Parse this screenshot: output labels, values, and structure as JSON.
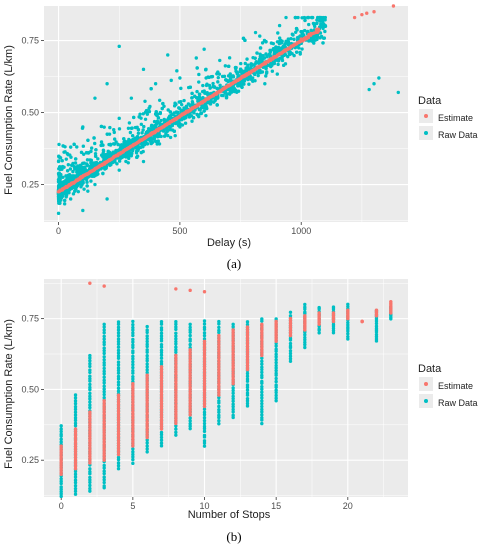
{
  "colors": {
    "estimate": "#F8766D",
    "raw": "#00BFC4",
    "panel": "#EBEBEB",
    "grid": "#FFFFFF"
  },
  "chart_data": [
    {
      "type": "scatter",
      "panel": "a",
      "caption": "(a)",
      "xlabel": "Delay (s)",
      "ylabel": "Fuel Consumption Rate (L/km)",
      "xlim": [
        -60,
        1440
      ],
      "ylim": [
        0.12,
        0.87
      ],
      "xticks": [
        0,
        500,
        1000
      ],
      "xtick_labels": [
        "0",
        "500",
        "1000"
      ],
      "yticks": [
        0.25,
        0.5,
        0.75
      ],
      "ytick_labels": [
        "0.25",
        "0.50",
        "0.75"
      ],
      "grid": true,
      "legend": {
        "title": "Data",
        "position": "right",
        "entries": [
          "Estimate",
          "Raw Data"
        ]
      },
      "series": [
        {
          "name": "Raw Data",
          "description_points": [
            [
              0,
              0.15
            ],
            [
              0,
              0.2
            ],
            [
              0,
              0.33
            ],
            [
              50,
              0.2
            ],
            [
              50,
              0.38
            ],
            [
              100,
              0.16
            ],
            [
              100,
              0.3
            ],
            [
              100,
              0.45
            ],
            [
              150,
              0.25
            ],
            [
              150,
              0.55
            ],
            [
              200,
              0.2
            ],
            [
              200,
              0.35
            ],
            [
              200,
              0.6
            ],
            [
              250,
              0.3
            ],
            [
              250,
              0.48
            ],
            [
              250,
              0.73
            ],
            [
              300,
              0.35
            ],
            [
              300,
              0.55
            ],
            [
              350,
              0.33
            ],
            [
              350,
              0.65
            ],
            [
              400,
              0.4
            ],
            [
              400,
              0.6
            ],
            [
              450,
              0.42
            ],
            [
              450,
              0.7
            ],
            [
              500,
              0.45
            ],
            [
              500,
              0.62
            ],
            [
              550,
              0.47
            ],
            [
              600,
              0.52
            ],
            [
              600,
              0.72
            ],
            [
              650,
              0.55
            ],
            [
              700,
              0.58
            ],
            [
              750,
              0.6
            ],
            [
              800,
              0.62
            ],
            [
              850,
              0.6
            ],
            [
              900,
              0.7
            ],
            [
              950,
              0.72
            ],
            [
              1000,
              0.75
            ],
            [
              1050,
              0.78
            ],
            [
              1100,
              0.8
            ],
            [
              1300,
              0.6
            ],
            [
              1320,
              0.62
            ],
            [
              1400,
              0.57
            ],
            [
              1280,
              0.58
            ]
          ]
        },
        {
          "name": "Estimate",
          "line": [
            [
              0,
              0.225
            ],
            [
              1000,
              0.75
            ]
          ],
          "extra_points": [
            [
              1220,
              0.83
            ],
            [
              1250,
              0.84
            ],
            [
              1270,
              0.845
            ],
            [
              1300,
              0.85
            ],
            [
              1380,
              0.87
            ]
          ]
        }
      ]
    },
    {
      "type": "scatter",
      "panel": "b",
      "caption": "(b)",
      "xlabel": "Number of Stops",
      "ylabel": "Fuel Consumption Rate (L/km)",
      "xlim": [
        -1.2,
        24.2
      ],
      "ylim": [
        0.12,
        0.89
      ],
      "xticks": [
        0,
        5,
        10,
        15,
        20
      ],
      "xtick_labels": [
        "0",
        "5",
        "10",
        "15",
        "20"
      ],
      "yticks": [
        0.25,
        0.5,
        0.75
      ],
      "ytick_labels": [
        "0.25",
        "0.50",
        "0.75"
      ],
      "grid": true,
      "legend": {
        "title": "Data",
        "position": "right",
        "entries": [
          "Estimate",
          "Raw Data"
        ]
      },
      "series": [
        {
          "name": "Raw Data",
          "columns": [
            [
              0,
              0.12,
              0.37
            ],
            [
              1,
              0.13,
              0.48
            ],
            [
              2,
              0.14,
              0.62
            ],
            [
              3,
              0.15,
              0.73
            ],
            [
              4,
              0.22,
              0.74
            ],
            [
              5,
              0.24,
              0.74
            ],
            [
              6,
              0.28,
              0.72
            ],
            [
              7,
              0.3,
              0.74
            ],
            [
              8,
              0.34,
              0.74
            ],
            [
              9,
              0.36,
              0.73
            ],
            [
              10,
              0.3,
              0.74
            ],
            [
              11,
              0.38,
              0.74
            ],
            [
              12,
              0.4,
              0.73
            ],
            [
              13,
              0.44,
              0.74
            ],
            [
              14,
              0.38,
              0.75
            ],
            [
              15,
              0.46,
              0.75
            ],
            [
              16,
              0.6,
              0.77
            ],
            [
              17,
              0.65,
              0.8
            ],
            [
              18,
              0.7,
              0.79
            ],
            [
              19,
              0.7,
              0.79
            ],
            [
              20,
              0.68,
              0.8
            ],
            [
              22,
              0.67,
              0.78
            ],
            [
              23,
              0.75,
              0.79
            ]
          ]
        },
        {
          "name": "Estimate",
          "columns": [
            [
              0,
              0.2,
              0.3
            ],
            [
              1,
              0.22,
              0.36
            ],
            [
              2,
              0.24,
              0.42
            ],
            [
              3,
              0.25,
              0.46
            ],
            [
              4,
              0.27,
              0.48
            ],
            [
              5,
              0.3,
              0.52
            ],
            [
              6,
              0.33,
              0.55
            ],
            [
              7,
              0.36,
              0.58
            ],
            [
              8,
              0.38,
              0.62
            ],
            [
              9,
              0.41,
              0.64
            ],
            [
              10,
              0.44,
              0.67
            ],
            [
              11,
              0.48,
              0.69
            ],
            [
              12,
              0.52,
              0.71
            ],
            [
              13,
              0.57,
              0.72
            ],
            [
              14,
              0.62,
              0.73
            ],
            [
              15,
              0.67,
              0.74
            ],
            [
              16,
              0.69,
              0.75
            ],
            [
              17,
              0.71,
              0.76
            ],
            [
              18,
              0.73,
              0.77
            ],
            [
              19,
              0.74,
              0.77
            ],
            [
              20,
              0.75,
              0.78
            ],
            [
              21,
              0.74,
              0.74
            ],
            [
              22,
              0.76,
              0.78
            ],
            [
              23,
              0.77,
              0.81
            ]
          ],
          "outliers": [
            [
              2,
              0.875
            ],
            [
              3,
              0.865
            ],
            [
              8,
              0.855
            ],
            [
              9,
              0.85
            ],
            [
              10,
              0.845
            ]
          ]
        }
      ]
    }
  ]
}
